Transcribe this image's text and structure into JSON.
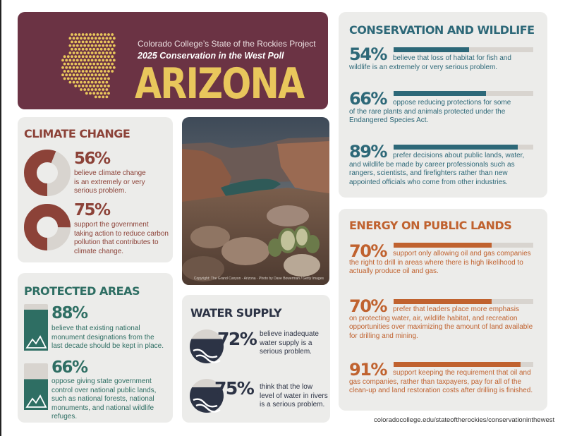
{
  "banner": {
    "org": "Colorado College’s State of the Rockies Project",
    "poll": "2025 Conservation in the West Poll",
    "state": "ARIZONA"
  },
  "colors": {
    "banner_bg": "#6b3344",
    "banner_title": "#e9c75c",
    "climate": "#8c4238",
    "protected": "#2e6e63",
    "water": "#2c3345",
    "conservation": "#2d6878",
    "energy": "#c0622f",
    "panel": "#ececea"
  },
  "climate": {
    "heading": "CLIMATE CHANGE",
    "items": [
      {
        "pct": "56%",
        "value": 56,
        "text": [
          "believe climate change",
          "is an extremely or very",
          "serious problem."
        ]
      },
      {
        "pct": "75%",
        "value": 75,
        "text": [
          "support the government",
          "taking action to reduce carbon",
          "pollution that contributes to",
          "climate change."
        ]
      }
    ]
  },
  "protected": {
    "heading": "PROTECTED AREAS",
    "icon": "mountain-icon",
    "items": [
      {
        "pct": "88%",
        "value": 88,
        "text": [
          "believe that existing national",
          "monument designations from the",
          "last decade should be kept in place."
        ]
      },
      {
        "pct": "66%",
        "value": 66,
        "text": [
          "oppose giving state government",
          "control over national public lands,",
          "such as national forests, national",
          "monuments, and national wildlife",
          "refuges."
        ]
      }
    ]
  },
  "photo": {
    "credit": "Copyright: The Grand Canyon · Arizona · Photo by Dave Bowerman / Getty Images"
  },
  "water": {
    "heading": "WATER SUPPLY",
    "icon": "river-icon",
    "items": [
      {
        "pct": "72%",
        "value": 72,
        "text": [
          "believe inadequate",
          "water supply is a",
          "serious problem."
        ]
      },
      {
        "pct": "75%",
        "value": 75,
        "text": [
          "think that the low",
          "level of water in rivers",
          "is a serious problem."
        ]
      }
    ]
  },
  "conservation": {
    "heading": "CONSERVATION AND WILDLIFE",
    "items": [
      {
        "pct": "54%",
        "value": 54,
        "text": [
          "believe that loss of habitat for fish and",
          "wildlife is an extremely or very serious problem."
        ]
      },
      {
        "pct": "66%",
        "value": 66,
        "text": [
          "oppose reducing protections for some",
          "of the rare plants and animals protected under the",
          "Endangered Species Act."
        ]
      },
      {
        "pct": "89%",
        "value": 89,
        "text": [
          "prefer decisions about public lands, water,",
          "and wildlife be made by career professionals such as",
          "rangers, scientists, and firefighters rather than new",
          "appointed officials who come from other industries."
        ]
      }
    ]
  },
  "energy": {
    "heading": "ENERGY ON PUBLIC LANDS",
    "items": [
      {
        "pct": "70%",
        "value": 70,
        "text": [
          "support only allowing oil and gas companies",
          "the right to drill in areas where there is high likelihood to",
          "actually produce oil and gas."
        ]
      },
      {
        "pct": "70%",
        "value": 70,
        "text": [
          "prefer that leaders place more emphasis",
          "on protecting water, air, wildlife habitat, and recreation",
          "opportunities over maximizing the amount of land available",
          "for drilling and mining."
        ]
      },
      {
        "pct": "91%",
        "value": 91,
        "text": [
          "support keeping the requirement that oil and",
          "gas companies, rather than taxpayers, pay for all of the",
          "clean-up and land restoration costs after drilling is finished."
        ]
      }
    ]
  },
  "footer": {
    "url": "coloradocollege.edu/stateoftherockies/conservationinthewest"
  }
}
